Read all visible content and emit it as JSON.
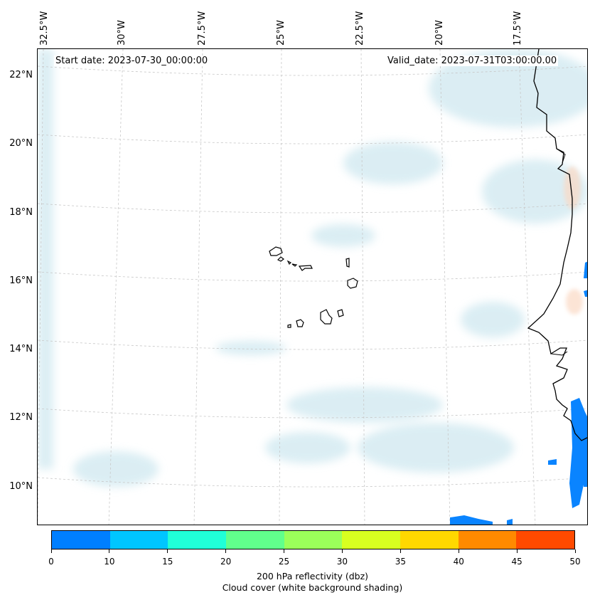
{
  "map": {
    "start_date": "Start date: 2023-07-30_00:00:00",
    "valid_date": "Valid_date: 2023-07-31T03:00:00.00",
    "longitude_labels": [
      "32.5°W",
      "30°W",
      "27.5°W",
      "25°W",
      "22.5°W",
      "20°W",
      "17.5°W"
    ],
    "latitude_labels": [
      "22°N",
      "20°N",
      "18°N",
      "16°N",
      "14°N",
      "12°N",
      "10°N"
    ],
    "region": "Cape Verde Islands and West African coast",
    "colors": {
      "reflectivity_low": "#0a84ff",
      "cloud": "#cfe8f0",
      "coast": "#000000"
    }
  },
  "colorbar": {
    "ticks": [
      "0",
      "10",
      "15",
      "20",
      "25",
      "30",
      "35",
      "40",
      "45",
      "50"
    ],
    "colors": [
      "#007fff",
      "#00c6ff",
      "#20ffd8",
      "#61ff8c",
      "#9bff5a",
      "#d8ff20",
      "#ffd800",
      "#ff8a00",
      "#ff4a00"
    ],
    "label_line1": "200 hPa reflectivity (dbz)",
    "label_line2": "Cloud cover (white background shading)"
  }
}
